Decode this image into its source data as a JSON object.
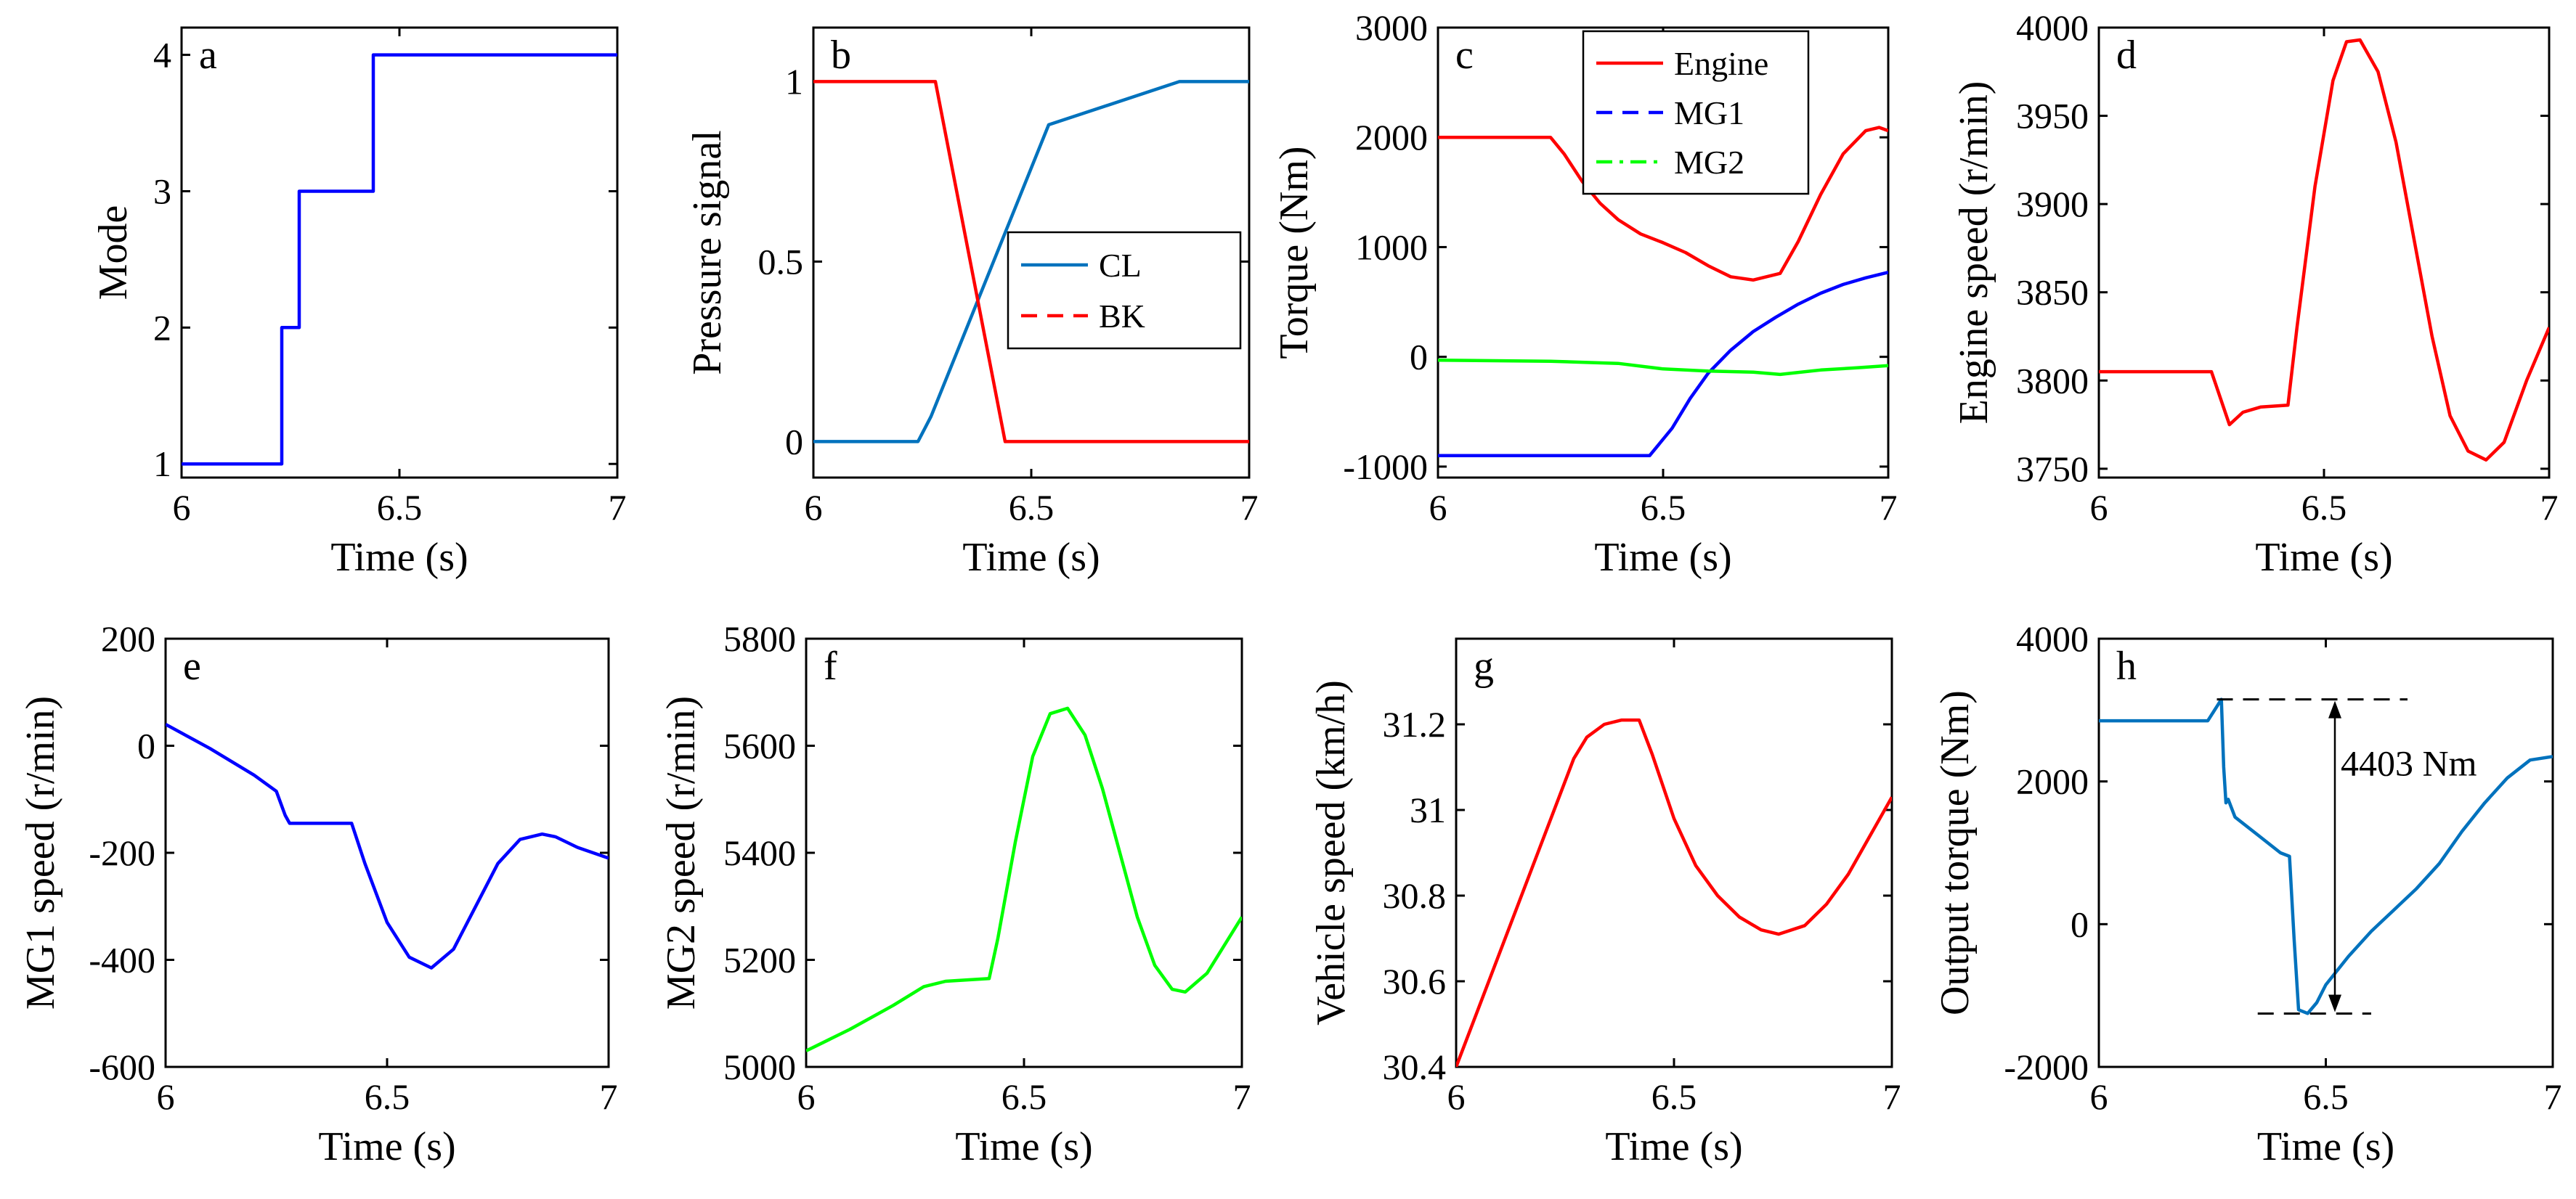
{
  "chart_data": [
    {
      "id": "a",
      "type": "line",
      "letter": "a",
      "xlabel": "Time (s)",
      "ylabel": "Mode",
      "xlim": [
        6,
        7
      ],
      "ylim": [
        0.9,
        4.2
      ],
      "xticks": [
        6,
        6.5,
        7
      ],
      "yticks": [
        1,
        2,
        3,
        4
      ],
      "series": [
        {
          "name": "Mode",
          "color": "#0000ff",
          "dash": "solid",
          "x": [
            6,
            6.23,
            6.23,
            6.25,
            6.25,
            6.27,
            6.27,
            6.44,
            6.44,
            7
          ],
          "y": [
            1,
            1,
            2,
            2,
            2,
            2,
            3,
            3,
            4,
            4
          ]
        }
      ]
    },
    {
      "id": "b",
      "type": "line",
      "letter": "b",
      "xlabel": "Time (s)",
      "ylabel": "Pressure signal",
      "xlim": [
        6,
        7
      ],
      "ylim": [
        -0.1,
        1.15
      ],
      "xticks": [
        6,
        6.5,
        7
      ],
      "yticks": [
        0,
        0.5,
        1
      ],
      "legend": {
        "position": "center-right",
        "entries": [
          "CL",
          "BK"
        ]
      },
      "series": [
        {
          "name": "CL",
          "color": "#0072bd",
          "dash": "solid",
          "x": [
            6,
            6.24,
            6.27,
            6.54,
            6.84,
            7
          ],
          "y": [
            0,
            0,
            0.07,
            0.88,
            1,
            1
          ]
        },
        {
          "name": "BK",
          "color": "#ff0000",
          "dash": "dashed",
          "legend_only": true,
          "x": [],
          "y": []
        },
        {
          "name": "BK-drawn",
          "color": "#ff0000",
          "dash": "solid",
          "no_legend": true,
          "x": [
            6,
            6.28,
            6.44,
            7
          ],
          "y": [
            1,
            1,
            0,
            0
          ]
        }
      ]
    },
    {
      "id": "c",
      "type": "line",
      "letter": "c",
      "xlabel": "Time (s)",
      "ylabel": "Torque (Nm)",
      "xlim": [
        6,
        7
      ],
      "ylim": [
        -1100,
        3000
      ],
      "xticks": [
        6,
        6.5,
        7
      ],
      "yticks": [
        -1000,
        0,
        1000,
        2000,
        3000
      ],
      "legend": {
        "position": "top",
        "entries": [
          "Engine",
          "MG1",
          "MG2"
        ]
      },
      "series": [
        {
          "name": "Engine",
          "color": "#ff0000",
          "dash": "solid",
          "x": [
            6,
            6.25,
            6.28,
            6.32,
            6.36,
            6.4,
            6.45,
            6.5,
            6.55,
            6.6,
            6.65,
            6.7,
            6.76,
            6.8,
            6.85,
            6.9,
            6.95,
            6.98,
            7
          ],
          "y": [
            2000,
            2000,
            1850,
            1600,
            1400,
            1250,
            1120,
            1040,
            950,
            830,
            730,
            700,
            760,
            1050,
            1480,
            1850,
            2060,
            2090,
            2060
          ]
        },
        {
          "name": "MG1",
          "color": "#0000ff",
          "dash": "dashed",
          "legend_only": true,
          "x": [],
          "y": []
        },
        {
          "name": "MG2",
          "color": "#00ff00",
          "dash": "dashdot",
          "legend_only": true,
          "x": [],
          "y": []
        },
        {
          "name": "MG1-drawn",
          "color": "#0000ff",
          "dash": "solid",
          "no_legend": true,
          "x": [
            6,
            6.47,
            6.52,
            6.56,
            6.6,
            6.65,
            6.7,
            6.75,
            6.8,
            6.85,
            6.9,
            6.95,
            7
          ],
          "y": [
            -900,
            -900,
            -650,
            -380,
            -150,
            60,
            230,
            360,
            480,
            580,
            660,
            720,
            770
          ]
        },
        {
          "name": "MG2-drawn",
          "color": "#00ff00",
          "dash": "solid",
          "no_legend": true,
          "x": [
            6,
            6.25,
            6.4,
            6.5,
            6.6,
            6.7,
            6.76,
            6.85,
            6.93,
            7
          ],
          "y": [
            -30,
            -40,
            -60,
            -110,
            -130,
            -140,
            -160,
            -120,
            -100,
            -80
          ]
        }
      ]
    },
    {
      "id": "d",
      "type": "line",
      "letter": "d",
      "xlabel": "Time (s)",
      "ylabel": "Engine speed (r/min)",
      "xlim": [
        6,
        7
      ],
      "ylim": [
        3745,
        4000
      ],
      "xticks": [
        6,
        6.5,
        7
      ],
      "yticks": [
        3750,
        3800,
        3850,
        3900,
        3950,
        4000
      ],
      "series": [
        {
          "name": "Engine speed",
          "color": "#ff0000",
          "dash": "solid",
          "x": [
            6,
            6.25,
            6.27,
            6.29,
            6.32,
            6.36,
            6.42,
            6.44,
            6.48,
            6.52,
            6.55,
            6.58,
            6.62,
            6.66,
            6.7,
            6.74,
            6.78,
            6.82,
            6.86,
            6.9,
            6.95,
            7
          ],
          "y": [
            3805,
            3805,
            3790,
            3775,
            3782,
            3785,
            3786,
            3830,
            3910,
            3970,
            3992,
            3993,
            3975,
            3935,
            3880,
            3825,
            3780,
            3760,
            3755,
            3765,
            3800,
            3830
          ]
        }
      ]
    },
    {
      "id": "e",
      "type": "line",
      "letter": "e",
      "xlabel": "Time (s)",
      "ylabel": "MG1 speed (r/min)",
      "xlim": [
        6,
        7
      ],
      "ylim": [
        -600,
        200
      ],
      "xticks": [
        6,
        6.5,
        7
      ],
      "yticks": [
        -600,
        -400,
        -200,
        0,
        200
      ],
      "series": [
        {
          "name": "MG1 speed",
          "color": "#0000ff",
          "dash": "solid",
          "x": [
            6,
            6.1,
            6.2,
            6.25,
            6.27,
            6.28,
            6.35,
            6.42,
            6.45,
            6.5,
            6.55,
            6.6,
            6.65,
            6.7,
            6.75,
            6.8,
            6.85,
            6.88,
            6.93,
            7
          ],
          "y": [
            40,
            -5,
            -55,
            -85,
            -130,
            -145,
            -145,
            -145,
            -220,
            -330,
            -395,
            -415,
            -380,
            -300,
            -220,
            -175,
            -165,
            -170,
            -190,
            -210
          ]
        }
      ]
    },
    {
      "id": "f",
      "type": "line",
      "letter": "f",
      "xlabel": "Time (s)",
      "ylabel": "MG2 speed (r/min)",
      "xlim": [
        6,
        7
      ],
      "ylim": [
        5000,
        5800
      ],
      "xticks": [
        6,
        6.5,
        7
      ],
      "yticks": [
        5000,
        5200,
        5400,
        5600,
        5800
      ],
      "series": [
        {
          "name": "MG2 speed",
          "color": "#00ff00",
          "dash": "solid",
          "x": [
            6,
            6.1,
            6.2,
            6.27,
            6.32,
            6.42,
            6.44,
            6.48,
            6.52,
            6.56,
            6.6,
            6.64,
            6.68,
            6.72,
            6.76,
            6.8,
            6.84,
            6.87,
            6.92,
            7
          ],
          "y": [
            5030,
            5070,
            5115,
            5150,
            5160,
            5165,
            5240,
            5420,
            5580,
            5660,
            5670,
            5620,
            5520,
            5400,
            5280,
            5190,
            5145,
            5140,
            5175,
            5280
          ]
        }
      ]
    },
    {
      "id": "g",
      "type": "line",
      "letter": "g",
      "xlabel": "Time (s)",
      "ylabel": "Vehicle speed (km/h)",
      "xlim": [
        6,
        7
      ],
      "ylim": [
        30.4,
        31.4
      ],
      "xticks": [
        6,
        6.5,
        7
      ],
      "yticks": [
        30.4,
        30.6,
        30.8,
        31,
        31.2
      ],
      "series": [
        {
          "name": "Vehicle speed",
          "color": "#ff0000",
          "dash": "solid",
          "x": [
            6,
            6.27,
            6.3,
            6.34,
            6.38,
            6.42,
            6.45,
            6.5,
            6.55,
            6.6,
            6.65,
            6.7,
            6.74,
            6.8,
            6.85,
            6.9,
            6.95,
            7
          ],
          "y": [
            30.4,
            31.12,
            31.17,
            31.2,
            31.21,
            31.21,
            31.13,
            30.98,
            30.87,
            30.8,
            30.75,
            30.72,
            30.71,
            30.73,
            30.78,
            30.85,
            30.94,
            31.03
          ]
        }
      ]
    },
    {
      "id": "h",
      "type": "line",
      "letter": "h",
      "xlabel": "Time (s)",
      "ylabel": "Output torque (Nm)",
      "xlim": [
        6,
        7
      ],
      "ylim": [
        -2000,
        4000
      ],
      "xticks": [
        6,
        6.5,
        7
      ],
      "yticks": [
        -2000,
        0,
        2000,
        4000
      ],
      "annotation": {
        "text": "4403 Nm",
        "upper_value": 3150,
        "lower_value": -1253,
        "arrow_x": 6.52,
        "upper_line_x": [
          6.26,
          6.68
        ],
        "lower_line_x": [
          6.35,
          6.6
        ]
      },
      "series": [
        {
          "name": "Output torque",
          "color": "#0072bd",
          "dash": "solid",
          "x": [
            6,
            6.1,
            6.24,
            6.26,
            6.27,
            6.275,
            6.28,
            6.285,
            6.3,
            6.35,
            6.4,
            6.42,
            6.43,
            6.44,
            6.46,
            6.48,
            6.5,
            6.55,
            6.6,
            6.65,
            6.7,
            6.75,
            6.8,
            6.85,
            6.9,
            6.95,
            7
          ],
          "y": [
            2850,
            2850,
            2850,
            3050,
            3150,
            2200,
            1700,
            1750,
            1500,
            1250,
            1000,
            950,
            -200,
            -1200,
            -1250,
            -1100,
            -850,
            -450,
            -100,
            200,
            500,
            850,
            1300,
            1700,
            2050,
            2300,
            2350
          ]
        }
      ]
    }
  ]
}
